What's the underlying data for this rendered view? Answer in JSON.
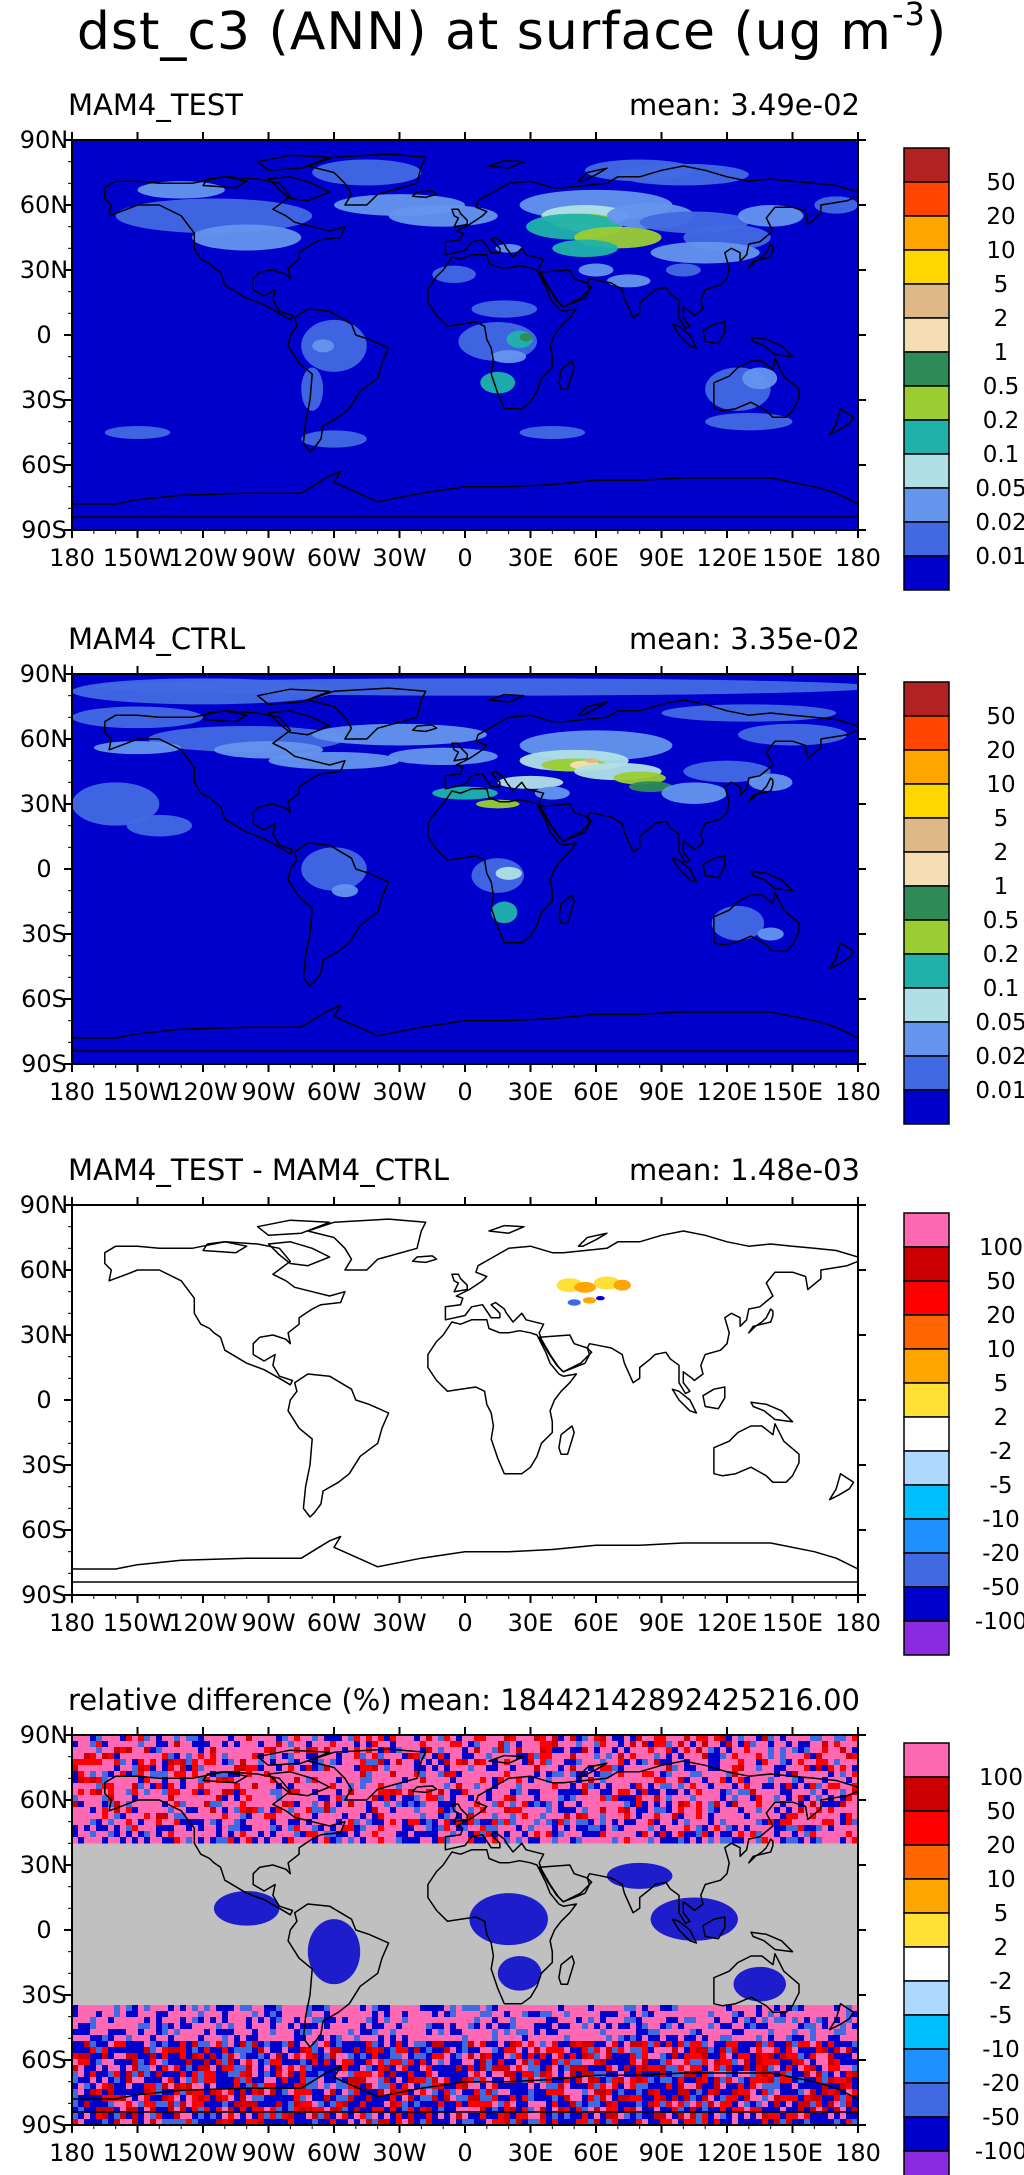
{
  "title": {
    "main": "dst_c3 (ANN) at surface (ug m",
    "exponent": "-3",
    "close": ")"
  },
  "axes": {
    "lon_ticks": [
      "180",
      "150W",
      "120W",
      "90W",
      "60W",
      "30W",
      "0",
      "30E",
      "60E",
      "90E",
      "120E",
      "150E",
      "180"
    ],
    "lat_ticks": [
      "90N",
      "60N",
      "30N",
      "0",
      "30S",
      "60S",
      "90S"
    ]
  },
  "colors": {
    "ocean_fill": "#0000c8",
    "land_outline": "#000000",
    "missing_gray": "#c0c0c0"
  },
  "scales": {
    "field": {
      "labels": [
        "50",
        "20",
        "10",
        "5",
        "2",
        "1",
        "0.5",
        "0.2",
        "0.1",
        "0.05",
        "0.02",
        "0.01"
      ],
      "colors": [
        "#b22222",
        "#ff4500",
        "#ffa500",
        "#ffd700",
        "#deb887",
        "#f5deb3",
        "#2e8b57",
        "#9acd32",
        "#20b2aa",
        "#b0e0e6",
        "#6495ed",
        "#4169e1",
        "#0000cd"
      ]
    },
    "diff": {
      "labels": [
        "100",
        "50",
        "20",
        "10",
        "5",
        "2",
        "-2",
        "-5",
        "-10",
        "-20",
        "-50",
        "-100"
      ],
      "colors": [
        "#ff69b4",
        "#cc0000",
        "#ff0000",
        "#ff6600",
        "#ffa500",
        "#ffe135",
        "#ffffff",
        "#add8ff",
        "#00bfff",
        "#1e90ff",
        "#4169e1",
        "#0000cd",
        "#8a2be2"
      ]
    }
  },
  "panels": [
    {
      "title": "MAM4_TEST",
      "mean": "mean: 3.49e-02",
      "style": "field",
      "scale": "field"
    },
    {
      "title": "MAM4_CTRL",
      "mean": "mean: 3.35e-02",
      "style": "field",
      "scale": "field"
    },
    {
      "title": "MAM4_TEST - MAM4_CTRL",
      "mean": "mean: 1.48e-03",
      "style": "diff",
      "scale": "diff"
    },
    {
      "title": "relative difference (%)",
      "mean": "mean: 18442142892425216.00",
      "style": "reldiff",
      "scale": "diff"
    }
  ]
}
